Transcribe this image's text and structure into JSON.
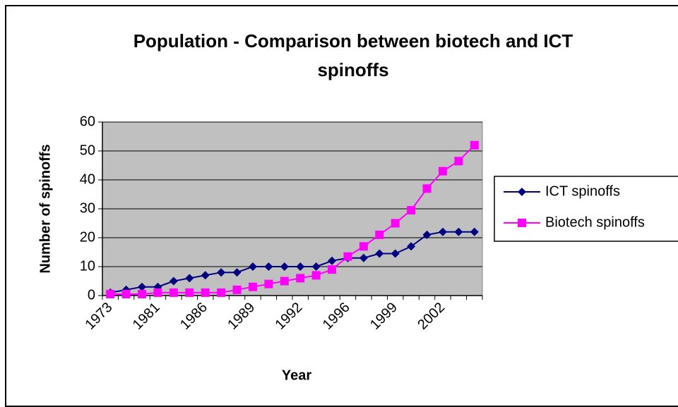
{
  "chart_data": {
    "type": "line",
    "title": "Population - Comparison between biotech and ICT spinoffs",
    "x_label": "Year",
    "y_label": "Number of spinoffs",
    "categories": [
      "1973",
      null,
      null,
      "1981",
      null,
      null,
      "1986",
      null,
      null,
      "1989",
      null,
      null,
      "1992",
      null,
      null,
      "1996",
      null,
      null,
      "1999",
      null,
      null,
      "2002",
      null,
      null
    ],
    "series": [
      {
        "name": "ICT spinoffs",
        "color": "#000080",
        "marker": "diamond",
        "values": [
          1,
          2,
          3,
          3,
          5,
          6,
          7,
          8,
          8,
          10,
          10,
          10,
          10,
          10,
          12,
          13,
          13,
          14.5,
          14.5,
          17,
          21,
          22,
          22,
          22
        ]
      },
      {
        "name": "Biotech spinoffs",
        "color": "#ff00ff",
        "marker": "square",
        "values": [
          0.5,
          0.5,
          0.5,
          1,
          1,
          1,
          1,
          1,
          2,
          3,
          4,
          5,
          6,
          7,
          9,
          13.5,
          17,
          21,
          25,
          29.5,
          37,
          43,
          46.5,
          52
        ]
      }
    ],
    "ylim": [
      0,
      60
    ],
    "yticks": [
      0,
      10,
      20,
      30,
      40,
      50,
      60
    ],
    "grid": true,
    "plot_background": "#c0c0c0",
    "legend": "right"
  }
}
